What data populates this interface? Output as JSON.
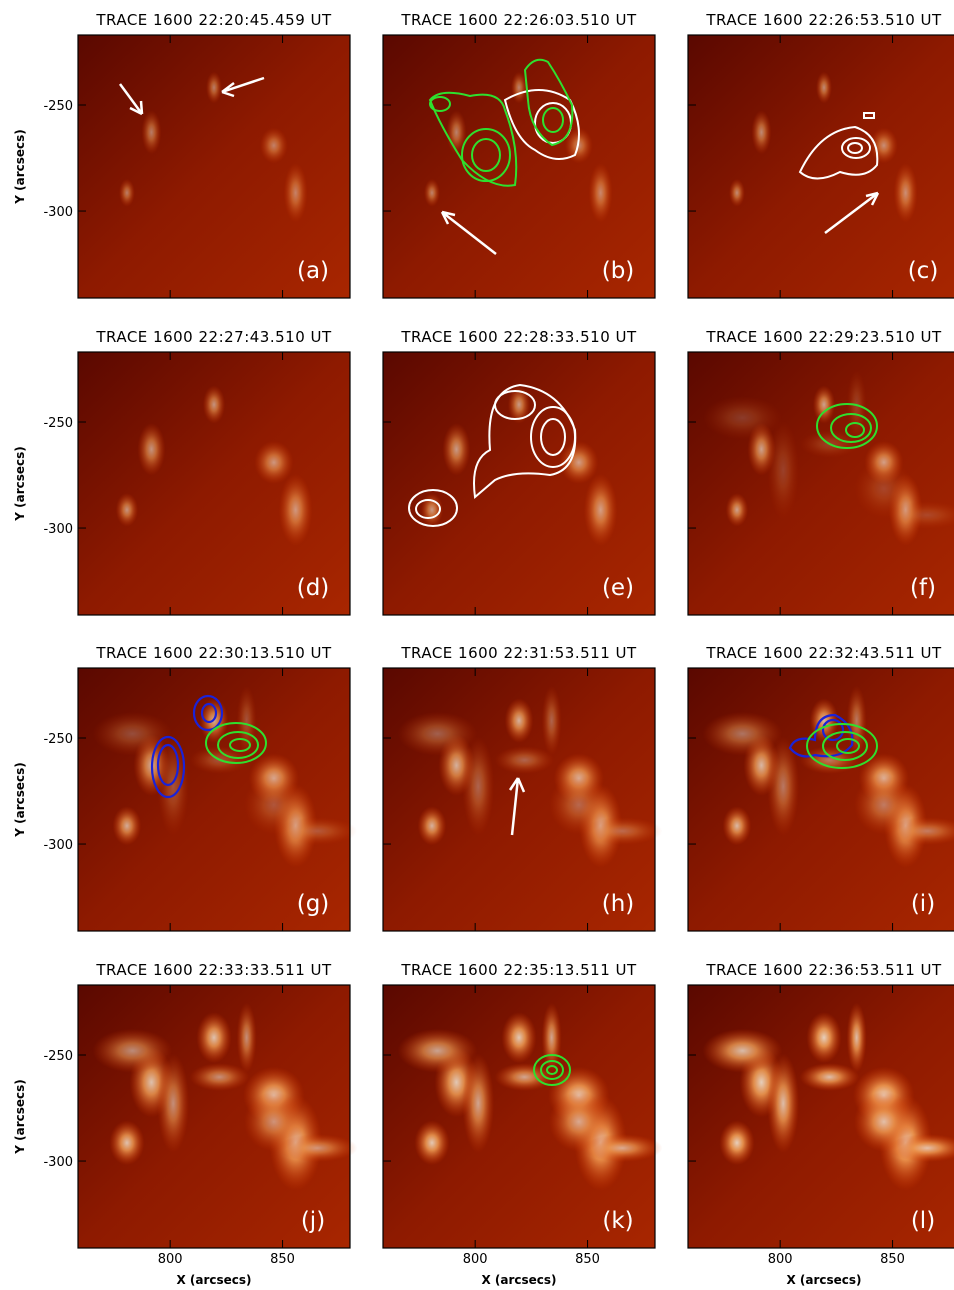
{
  "panels": [
    {
      "title": "TRACE 1600 22:20:45.459 UT",
      "label": "(a)"
    },
    {
      "title": "TRACE 1600 22:26:03.510 UT",
      "label": "(b)"
    },
    {
      "title": "TRACE 1600 22:26:53.510 UT",
      "label": "(c)"
    },
    {
      "title": "TRACE 1600 22:27:43.510 UT",
      "label": "(d)"
    },
    {
      "title": "TRACE 1600 22:28:33.510 UT",
      "label": "(e)"
    },
    {
      "title": "TRACE 1600 22:29:23.510 UT",
      "label": "(f)"
    },
    {
      "title": "TRACE 1600 22:30:13.510 UT",
      "label": "(g)"
    },
    {
      "title": "TRACE 1600 22:31:53.511 UT",
      "label": "(h)"
    },
    {
      "title": "TRACE 1600 22:32:43.511 UT",
      "label": "(i)"
    },
    {
      "title": "TRACE 1600 22:33:33.511 UT",
      "label": "(j)"
    },
    {
      "title": "TRACE 1600 22:35:13.511 UT",
      "label": "(k)"
    },
    {
      "title": "TRACE 1600 22:36:53.511 UT",
      "label": "(l)"
    }
  ],
  "axes": {
    "x": {
      "label": "X (arcsecs)",
      "lim": [
        759,
        880
      ],
      "ticks": [
        800,
        850
      ]
    },
    "y": {
      "label": "Y (arcsecs)",
      "lim": [
        -341,
        -217
      ],
      "ticks": [
        -250,
        -300
      ]
    }
  }
}
